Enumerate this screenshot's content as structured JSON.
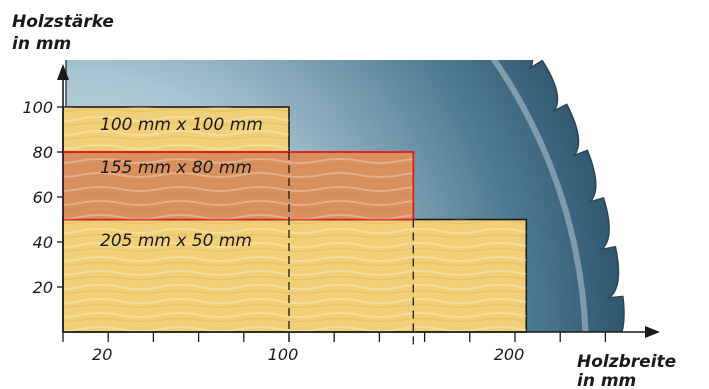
{
  "y_axis": {
    "title_line1": "Holzstärke",
    "title_line2": "in mm",
    "ticks": [
      "20",
      "40",
      "60",
      "80",
      "100"
    ]
  },
  "x_axis": {
    "title_line1": "Holzbreite",
    "title_line2": "in mm",
    "ticks": [
      "20",
      "100",
      "200"
    ]
  },
  "boards": [
    {
      "label": "100 mm x 100 mm",
      "width_mm": 100,
      "height_mm": 100,
      "color": "#f0cf76"
    },
    {
      "label": "155 mm x 80 mm",
      "width_mm": 155,
      "height_mm": 80,
      "color": "#d98f5e"
    },
    {
      "label": "205 mm x 50 mm",
      "width_mm": 205,
      "height_mm": 50,
      "color": "#f0cf76"
    }
  ],
  "colors": {
    "blade_light": "#c9dce6",
    "blade_dark": "#2f5a72",
    "highlight_outline": "#e02020"
  }
}
